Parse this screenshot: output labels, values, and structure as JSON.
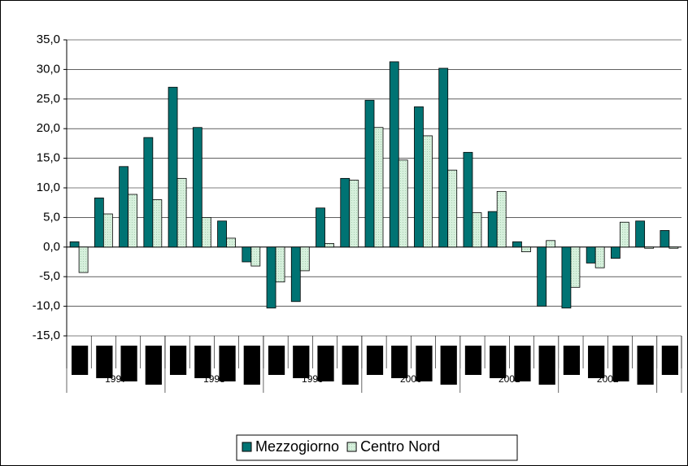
{
  "chart_data": {
    "type": "bar",
    "categories": [
      null,
      null,
      null,
      null,
      null,
      null,
      null,
      null,
      null,
      null,
      null,
      null,
      null,
      null,
      null,
      null,
      null,
      null,
      null,
      null,
      null,
      null,
      null,
      null,
      null
    ],
    "groups": [
      {
        "label": "1997",
        "count": 4
      },
      {
        "label": "1998",
        "count": 4
      },
      {
        "label": "1999",
        "count": 4
      },
      {
        "label": "2000",
        "count": 4
      },
      {
        "label": "2001",
        "count": 4
      },
      {
        "label": "2002",
        "count": 4
      },
      {
        "label": null,
        "count": 1
      }
    ],
    "series": [
      {
        "name": "Mezzogiorno",
        "color": "#007373",
        "values": [
          0.9,
          8.3,
          13.6,
          18.5,
          27.0,
          20.2,
          4.4,
          -2.5,
          -10.3,
          -9.2,
          6.6,
          11.6,
          24.8,
          31.3,
          23.7,
          30.2,
          16.0,
          6.0,
          0.9,
          -10.0,
          -10.3,
          -2.7,
          -1.9,
          4.4,
          2.8
        ]
      },
      {
        "name": "Centro Nord",
        "color": "#d6f0dc",
        "values": [
          -4.3,
          5.6,
          8.9,
          8.0,
          11.6,
          5.0,
          1.5,
          -3.2,
          -5.9,
          -4.0,
          0.6,
          11.3,
          20.2,
          14.7,
          18.8,
          13.0,
          5.8,
          9.4,
          -0.8,
          1.1,
          -6.8,
          -3.5,
          4.2,
          -0.2,
          -0.2
        ]
      }
    ],
    "ylim": [
      -15,
      35
    ],
    "yticks": [
      {
        "value": -15,
        "label": "-15,0"
      },
      {
        "value": -10,
        "label": "-10,0"
      },
      {
        "value": -5,
        "label": "-5,0"
      },
      {
        "value": 0,
        "label": "0,0"
      },
      {
        "value": 5,
        "label": "5,0"
      },
      {
        "value": 10,
        "label": "10,0"
      },
      {
        "value": 15,
        "label": "15,0"
      },
      {
        "value": 20,
        "label": "20,0"
      },
      {
        "value": 25,
        "label": "25,0"
      },
      {
        "value": 30,
        "label": "30,0"
      },
      {
        "value": 35,
        "label": "35,0"
      }
    ],
    "grid": true,
    "legend": "bottom"
  }
}
